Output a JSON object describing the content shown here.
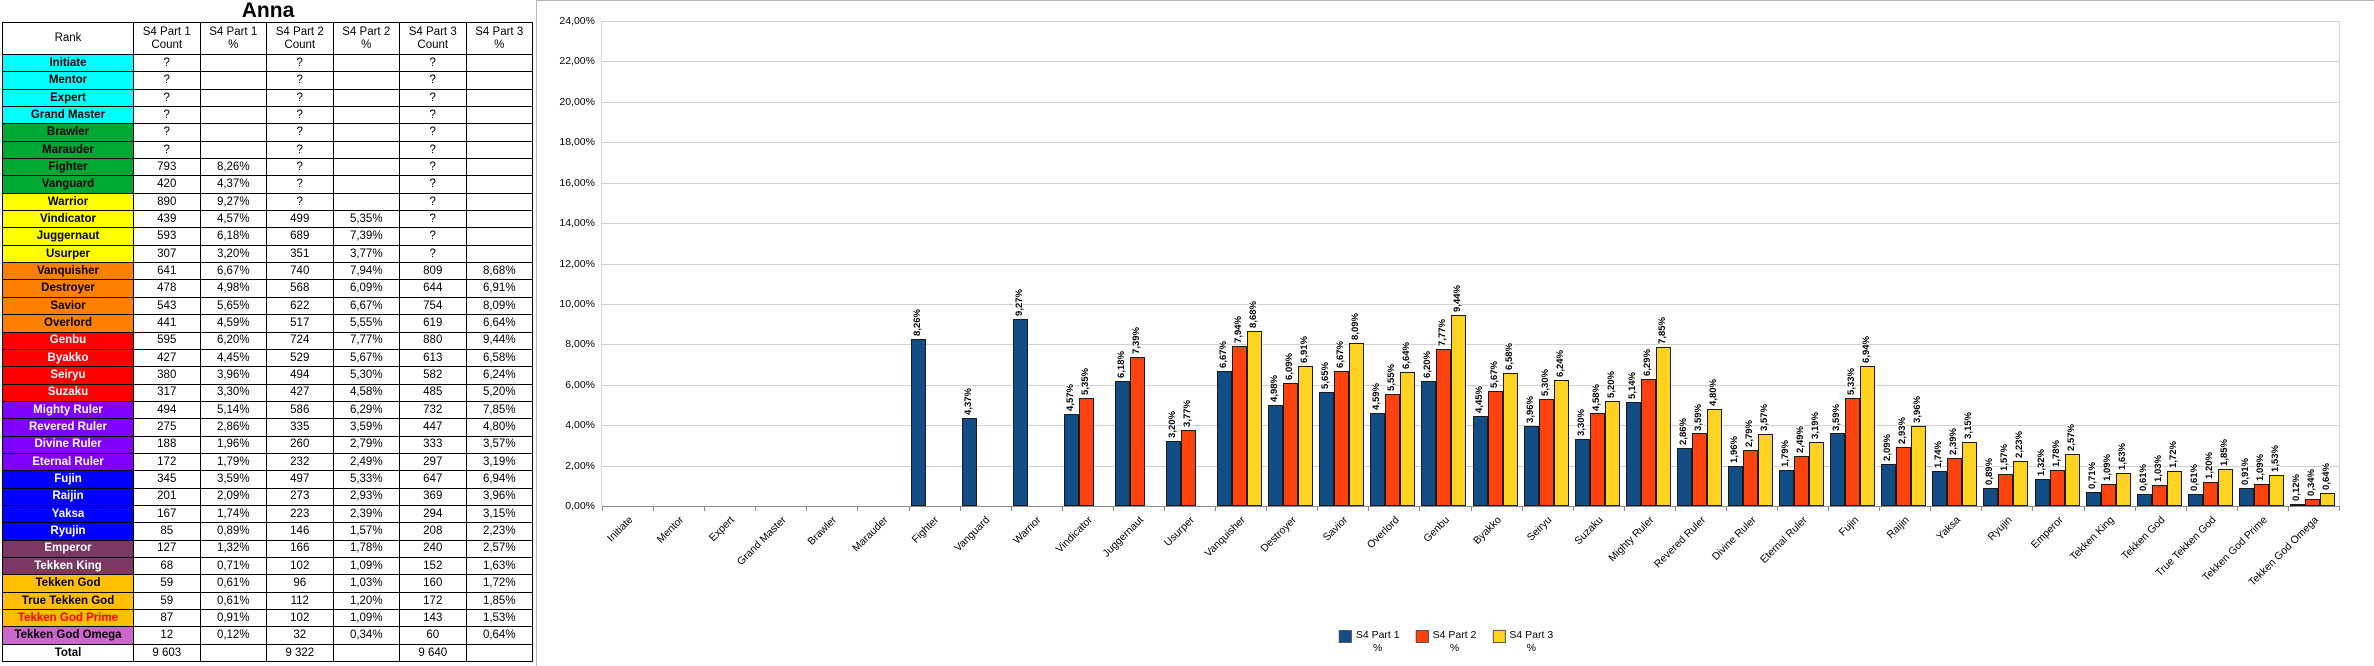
{
  "title": "Anna",
  "table": {
    "columns": [
      [
        "Rank"
      ],
      [
        "S4 Part 1",
        "Count"
      ],
      [
        "S4 Part 1",
        "%"
      ],
      [
        "S4 Part 2",
        "Count"
      ],
      [
        "S4 Part 2",
        "%"
      ],
      [
        "S4 Part 3",
        "Count"
      ],
      [
        "S4 Part 3",
        "%"
      ]
    ],
    "rows": [
      {
        "rank": "Initiate",
        "bg": "#00ffff",
        "fg": "#000000",
        "cells": [
          "?",
          "",
          "?",
          "",
          "?",
          ""
        ]
      },
      {
        "rank": "Mentor",
        "bg": "#00ffff",
        "fg": "#000000",
        "cells": [
          "?",
          "",
          "?",
          "",
          "?",
          ""
        ]
      },
      {
        "rank": "Expert",
        "bg": "#00ffff",
        "fg": "#000000",
        "cells": [
          "?",
          "",
          "?",
          "",
          "?",
          ""
        ]
      },
      {
        "rank": "Grand Master",
        "bg": "#00ffff",
        "fg": "#000000",
        "cells": [
          "?",
          "",
          "?",
          "",
          "?",
          ""
        ]
      },
      {
        "rank": "Brawler",
        "bg": "#00a933",
        "fg": "#000000",
        "cells": [
          "?",
          "",
          "?",
          "",
          "?",
          ""
        ]
      },
      {
        "rank": "Marauder",
        "bg": "#00a933",
        "fg": "#000000",
        "cells": [
          "?",
          "",
          "?",
          "",
          "?",
          ""
        ]
      },
      {
        "rank": "Fighter",
        "bg": "#00a933",
        "fg": "#000000",
        "cells": [
          "793",
          "8,26%",
          "?",
          "",
          "?",
          ""
        ]
      },
      {
        "rank": "Vanguard",
        "bg": "#00a933",
        "fg": "#000000",
        "cells": [
          "420",
          "4,37%",
          "?",
          "",
          "?",
          ""
        ]
      },
      {
        "rank": "Warrior",
        "bg": "#ffff00",
        "fg": "#000000",
        "cells": [
          "890",
          "9,27%",
          "?",
          "",
          "?",
          ""
        ]
      },
      {
        "rank": "Vindicator",
        "bg": "#ffff00",
        "fg": "#000000",
        "cells": [
          "439",
          "4,57%",
          "499",
          "5,35%",
          "?",
          ""
        ]
      },
      {
        "rank": "Juggernaut",
        "bg": "#ffff00",
        "fg": "#000000",
        "cells": [
          "593",
          "6,18%",
          "689",
          "7,39%",
          "?",
          ""
        ]
      },
      {
        "rank": "Usurper",
        "bg": "#ffff00",
        "fg": "#000000",
        "cells": [
          "307",
          "3,20%",
          "351",
          "3,77%",
          "?",
          ""
        ]
      },
      {
        "rank": "Vanquisher",
        "bg": "#ff8000",
        "fg": "#000000",
        "cells": [
          "641",
          "6,67%",
          "740",
          "7,94%",
          "809",
          "8,68%"
        ]
      },
      {
        "rank": "Destroyer",
        "bg": "#ff8000",
        "fg": "#000000",
        "cells": [
          "478",
          "4,98%",
          "568",
          "6,09%",
          "644",
          "6,91%"
        ]
      },
      {
        "rank": "Savior",
        "bg": "#ff8000",
        "fg": "#000000",
        "cells": [
          "543",
          "5,65%",
          "622",
          "6,67%",
          "754",
          "8,09%"
        ]
      },
      {
        "rank": "Overlord",
        "bg": "#ff8000",
        "fg": "#000000",
        "cells": [
          "441",
          "4,59%",
          "517",
          "5,55%",
          "619",
          "6,64%"
        ]
      },
      {
        "rank": "Genbu",
        "bg": "#ff0000",
        "fg": "#ffffff",
        "cells": [
          "595",
          "6,20%",
          "724",
          "7,77%",
          "880",
          "9,44%"
        ]
      },
      {
        "rank": "Byakko",
        "bg": "#ff0000",
        "fg": "#ffffff",
        "cells": [
          "427",
          "4,45%",
          "529",
          "5,67%",
          "613",
          "6,58%"
        ]
      },
      {
        "rank": "Seiryu",
        "bg": "#ff0000",
        "fg": "#ffffff",
        "cells": [
          "380",
          "3,96%",
          "494",
          "5,30%",
          "582",
          "6,24%"
        ]
      },
      {
        "rank": "Suzaku",
        "bg": "#ff0000",
        "fg": "#ffffff",
        "cells": [
          "317",
          "3,30%",
          "427",
          "4,58%",
          "485",
          "5,20%"
        ]
      },
      {
        "rank": "Mighty Ruler",
        "bg": "#8000ff",
        "fg": "#ffffff",
        "cells": [
          "494",
          "5,14%",
          "586",
          "6,29%",
          "732",
          "7,85%"
        ]
      },
      {
        "rank": "Revered Ruler",
        "bg": "#8000ff",
        "fg": "#ffffff",
        "cells": [
          "275",
          "2,86%",
          "335",
          "3,59%",
          "447",
          "4,80%"
        ]
      },
      {
        "rank": "Divine Ruler",
        "bg": "#8000ff",
        "fg": "#ffffff",
        "cells": [
          "188",
          "1,96%",
          "260",
          "2,79%",
          "333",
          "3,57%"
        ]
      },
      {
        "rank": "Eternal Ruler",
        "bg": "#8000ff",
        "fg": "#ffffff",
        "cells": [
          "172",
          "1,79%",
          "232",
          "2,49%",
          "297",
          "3,19%"
        ]
      },
      {
        "rank": "Fujin",
        "bg": "#0000ff",
        "fg": "#ffffff",
        "cells": [
          "345",
          "3,59%",
          "497",
          "5,33%",
          "647",
          "6,94%"
        ]
      },
      {
        "rank": "Raijin",
        "bg": "#0000ff",
        "fg": "#ffffff",
        "cells": [
          "201",
          "2,09%",
          "273",
          "2,93%",
          "369",
          "3,96%"
        ]
      },
      {
        "rank": "Yaksa",
        "bg": "#0000ff",
        "fg": "#ffffff",
        "cells": [
          "167",
          "1,74%",
          "223",
          "2,39%",
          "294",
          "3,15%"
        ]
      },
      {
        "rank": "Ryujin",
        "bg": "#0000ff",
        "fg": "#ffffff",
        "cells": [
          "85",
          "0,89%",
          "146",
          "1,57%",
          "208",
          "2,23%"
        ]
      },
      {
        "rank": "Emperor",
        "bg": "#7d3764",
        "fg": "#ffffff",
        "cells": [
          "127",
          "1,32%",
          "166",
          "1,78%",
          "240",
          "2,57%"
        ]
      },
      {
        "rank": "Tekken King",
        "bg": "#7d3764",
        "fg": "#ffffff",
        "cells": [
          "68",
          "0,71%",
          "102",
          "1,09%",
          "152",
          "1,63%"
        ]
      },
      {
        "rank": "Tekken God",
        "bg": "#ffbf00",
        "fg": "#000000",
        "cells": [
          "59",
          "0,61%",
          "96",
          "1,03%",
          "160",
          "1,72%"
        ]
      },
      {
        "rank": "True Tekken God",
        "bg": "#ffbf00",
        "fg": "#000000",
        "cells": [
          "59",
          "0,61%",
          "112",
          "1,20%",
          "172",
          "1,85%"
        ]
      },
      {
        "rank": "Tekken God Prime",
        "bg": "#ffbf00",
        "fg": "#ff0000",
        "cells": [
          "87",
          "0,91%",
          "102",
          "1,09%",
          "143",
          "1,53%"
        ]
      },
      {
        "rank": "Tekken God Omega",
        "bg": "#cc66cc",
        "fg": "#000000",
        "cells": [
          "12",
          "0,12%",
          "32",
          "0,34%",
          "60",
          "0,64%"
        ]
      }
    ],
    "total": {
      "label": "Total",
      "cells": [
        "9 603",
        "",
        "9 322",
        "",
        "9 640",
        ""
      ]
    }
  },
  "chart_data": {
    "type": "bar",
    "title": "",
    "xlabel": "",
    "ylabel": "",
    "ylim": [
      0,
      24
    ],
    "ytick_step": 2,
    "yticklabels": [
      "0,00%",
      "2,00%",
      "4,00%",
      "6,00%",
      "8,00%",
      "10,00%",
      "12,00%",
      "14,00%",
      "16,00%",
      "18,00%",
      "20,00%",
      "22,00%",
      "24,00%"
    ],
    "grid": true,
    "legend_position": "bottom-center",
    "data_label_format": "0,00% (rotated 90deg, white halo)",
    "categories": [
      "Initiate",
      "Mentor",
      "Expert",
      "Grand Master",
      "Brawler",
      "Marauder",
      "Fighter",
      "Vanguard",
      "Warrior",
      "Vindicator",
      "Juggernaut",
      "Usurper",
      "Vanquisher",
      "Destroyer",
      "Savior",
      "Overlord",
      "Genbu",
      "Byakko",
      "Seiryu",
      "Suzaku",
      "Mighty Ruler",
      "Revered Ruler",
      "Divine Ruler",
      "Eternal Ruler",
      "Fujin",
      "Raijin",
      "Yaksa",
      "Ryujin",
      "Emperor",
      "Tekken King",
      "Tekken God",
      "True Tekken God",
      "Tekken God Prime",
      "Tekken God Omega"
    ],
    "series": [
      {
        "name": "S4 Part 1",
        "unit": "%",
        "color": "#134d85",
        "values": [
          null,
          null,
          null,
          null,
          null,
          null,
          8.26,
          4.37,
          9.27,
          4.57,
          6.18,
          3.2,
          6.67,
          4.98,
          5.65,
          4.59,
          6.2,
          4.45,
          3.96,
          3.3,
          5.14,
          2.86,
          1.96,
          1.79,
          3.59,
          2.09,
          1.74,
          0.89,
          1.32,
          0.71,
          0.61,
          0.61,
          0.91,
          0.12
        ]
      },
      {
        "name": "S4 Part 2",
        "unit": "%",
        "color": "#ff420e",
        "values": [
          null,
          null,
          null,
          null,
          null,
          null,
          null,
          null,
          null,
          5.35,
          7.39,
          3.77,
          7.94,
          6.09,
          6.67,
          5.55,
          7.77,
          5.67,
          5.3,
          4.58,
          6.29,
          3.59,
          2.79,
          2.49,
          5.33,
          2.93,
          2.39,
          1.57,
          1.78,
          1.09,
          1.03,
          1.2,
          1.09,
          0.34
        ]
      },
      {
        "name": "S4 Part 3",
        "unit": "%",
        "color": "#ffd320",
        "values": [
          null,
          null,
          null,
          null,
          null,
          null,
          null,
          null,
          null,
          null,
          null,
          null,
          8.68,
          6.91,
          8.09,
          6.64,
          9.44,
          6.58,
          6.24,
          5.2,
          7.85,
          4.8,
          3.57,
          3.19,
          6.94,
          3.96,
          3.15,
          2.23,
          2.57,
          1.63,
          1.72,
          1.85,
          1.53,
          0.64
        ]
      }
    ]
  }
}
